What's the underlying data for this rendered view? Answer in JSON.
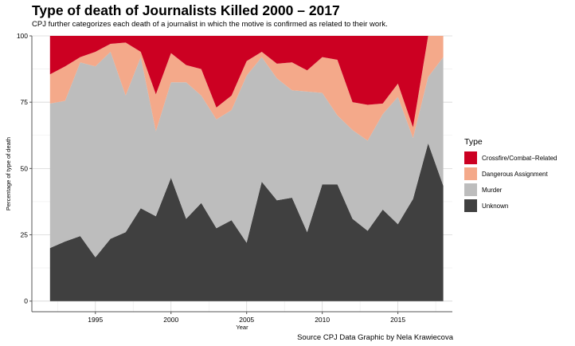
{
  "title": "Type of death of Journalists Killed 2000 – 2017",
  "subtitle": "CPJ further categorizes each death of a journalist in which the motive is confirmed as related to their work.",
  "source": "Source CPJ Data Graphic by Nela Krawiecova",
  "legend": {
    "title": "Type",
    "items": [
      {
        "label": "Crossfire/Combat−Related",
        "color": "#cc0022"
      },
      {
        "label": "Dangerous Assignment",
        "color": "#f4a98a"
      },
      {
        "label": "Murder",
        "color": "#bdbdbd"
      },
      {
        "label": "Unknown",
        "color": "#404040"
      }
    ]
  },
  "chart_data": {
    "type": "area",
    "stacked": true,
    "xlabel": "Year",
    "ylabel": "Percentage of type of death",
    "xlim": [
      1990.8,
      2018.6
    ],
    "ylim": [
      -4,
      100
    ],
    "xticks": [
      1995,
      2000,
      2005,
      2010,
      2015
    ],
    "yticks": [
      0,
      25,
      50,
      75,
      100
    ],
    "grid": true,
    "legend_position": "right",
    "x": [
      1992,
      1993,
      1994,
      1995,
      1996,
      1997,
      1998,
      1999,
      2000,
      2001,
      2002,
      2003,
      2004,
      2005,
      2006,
      2007,
      2008,
      2009,
      2010,
      2011,
      2012,
      2013,
      2014,
      2015,
      2016,
      2017,
      2018
    ],
    "series": [
      {
        "name": "Unknown",
        "color": "#404040",
        "values": [
          20,
          22.5,
          24.5,
          16.5,
          23.5,
          26,
          35,
          32,
          46.5,
          31,
          37,
          27.5,
          30.5,
          22,
          45,
          38,
          39,
          26,
          44,
          44,
          31,
          26.5,
          34.5,
          29,
          38.5,
          59.5,
          43.5
        ]
      },
      {
        "name": "Murder",
        "color": "#bdbdbd",
        "values": [
          54.5,
          53,
          65.5,
          72,
          70.5,
          51.5,
          57,
          32,
          36,
          51.5,
          40.5,
          41,
          41.5,
          63,
          47,
          46,
          40.5,
          53,
          34.5,
          26,
          33.5,
          34,
          36,
          48,
          23,
          25,
          48.5
        ]
      },
      {
        "name": "Dangerous Assignment",
        "color": "#f4a98a",
        "values": [
          11,
          13,
          2,
          5.5,
          3,
          20,
          2,
          14,
          11,
          6.5,
          10,
          4.5,
          5.5,
          5.5,
          2,
          5.5,
          10.5,
          8,
          13.5,
          21,
          10.5,
          13.5,
          4,
          5,
          4,
          15.5,
          8
        ]
      },
      {
        "name": "Crossfire/Combat−Related",
        "color": "#cc0022",
        "values": [
          14.5,
          11.5,
          8,
          6,
          3,
          2.5,
          6,
          22,
          6.5,
          11,
          12.5,
          27,
          22.5,
          9.5,
          6,
          10.5,
          10,
          13,
          8,
          9,
          25,
          26,
          25.5,
          18,
          34.5,
          0,
          0
        ]
      }
    ]
  }
}
